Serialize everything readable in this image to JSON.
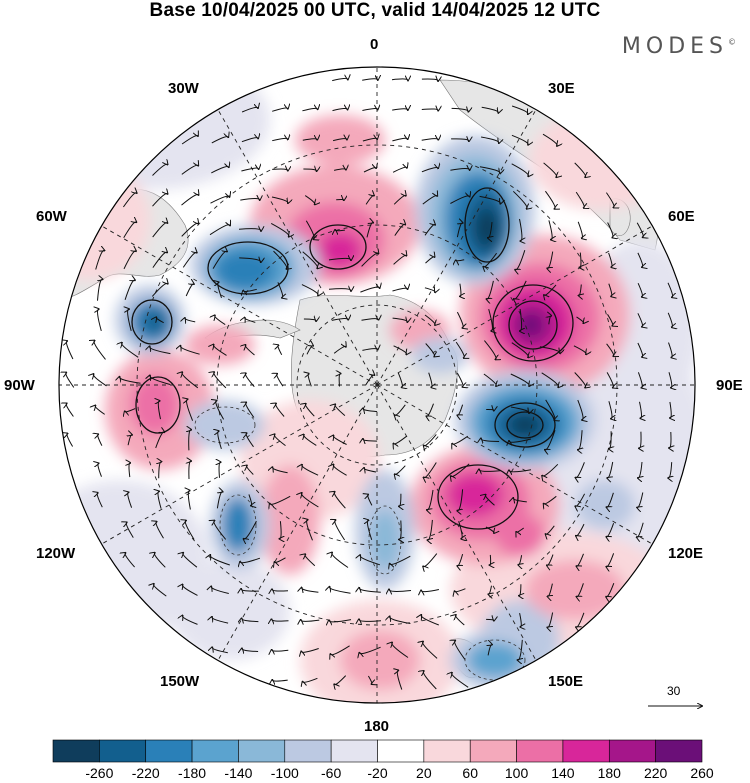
{
  "title": "Base 10/04/2025 00 UTC, valid 14/04/2025 12 UTC",
  "brand": "MODES",
  "brand_mark": "©",
  "longitude_labels": [
    "0",
    "30E",
    "60E",
    "90E",
    "120E",
    "150E",
    "180",
    "150W",
    "120W",
    "90W",
    "60W",
    "30W"
  ],
  "vector_scale": {
    "label": "30"
  },
  "colorbar": {
    "ticks": [
      "-260",
      "-220",
      "-180",
      "-140",
      "-100",
      "-60",
      "-20",
      "20",
      "60",
      "100",
      "140",
      "180",
      "220",
      "260"
    ],
    "colors": [
      "#0f3d5c",
      "#125f8e",
      "#2a80b8",
      "#5ba3cf",
      "#8ab8d8",
      "#bcc9e2",
      "#e4e4f0",
      "#ffffff",
      "#f9d8dc",
      "#f4a9bb",
      "#ec6fa6",
      "#d8269a",
      "#a5168a",
      "#6b0f78"
    ]
  }
}
